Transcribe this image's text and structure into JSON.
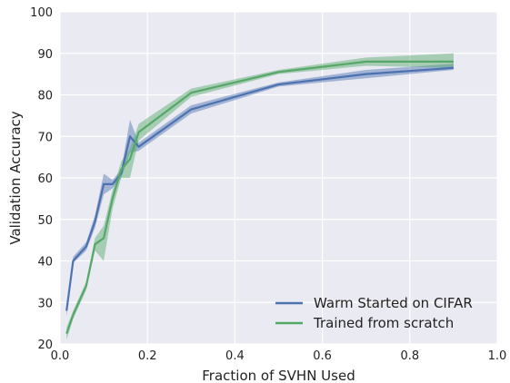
{
  "chart_data": {
    "type": "line",
    "xlabel": "Fraction of SVHN Used",
    "ylabel": "Validation Accuracy",
    "xlim": [
      0,
      1.0
    ],
    "ylim": [
      20,
      100
    ],
    "xticks": [
      "0.0",
      "0.2",
      "0.4",
      "0.6",
      "0.8",
      "1.0"
    ],
    "yticks": [
      "20",
      "30",
      "40",
      "50",
      "60",
      "70",
      "80",
      "90",
      "100"
    ],
    "grid": true,
    "legend_position": "lower-right",
    "series": [
      {
        "name": "Warm Started on CIFAR",
        "color": "#4c72b0",
        "x": [
          0.015,
          0.03,
          0.06,
          0.08,
          0.1,
          0.12,
          0.14,
          0.16,
          0.18,
          0.3,
          0.5,
          0.7,
          0.9
        ],
        "y": [
          28,
          40,
          43.5,
          49.5,
          58.5,
          58.5,
          61,
          70,
          67.5,
          76.5,
          82.5,
          85,
          86.5
        ],
        "lower": [
          26.5,
          39.5,
          42.5,
          48,
          56,
          57.5,
          60,
          66,
          66.5,
          75.5,
          82,
          84,
          86
        ],
        "upper": [
          29.5,
          41,
          44.5,
          51,
          61,
          59.5,
          62,
          74,
          68.5,
          77.5,
          83,
          86,
          87.5
        ]
      },
      {
        "name": "Trained from scratch",
        "color": "#55a868",
        "x": [
          0.015,
          0.03,
          0.06,
          0.08,
          0.1,
          0.12,
          0.14,
          0.16,
          0.18,
          0.3,
          0.5,
          0.7,
          0.9
        ],
        "y": [
          22.5,
          27,
          34,
          44,
          45.5,
          55,
          62,
          64.5,
          71,
          80.5,
          85.5,
          88,
          88
        ],
        "lower": [
          21,
          26,
          33,
          42.5,
          40,
          52.5,
          60,
          60,
          69,
          79.5,
          85,
          87,
          86.5
        ],
        "upper": [
          24,
          28,
          35,
          45.5,
          48.5,
          57,
          64,
          67,
          73,
          81.5,
          86,
          89,
          90
        ]
      }
    ]
  }
}
